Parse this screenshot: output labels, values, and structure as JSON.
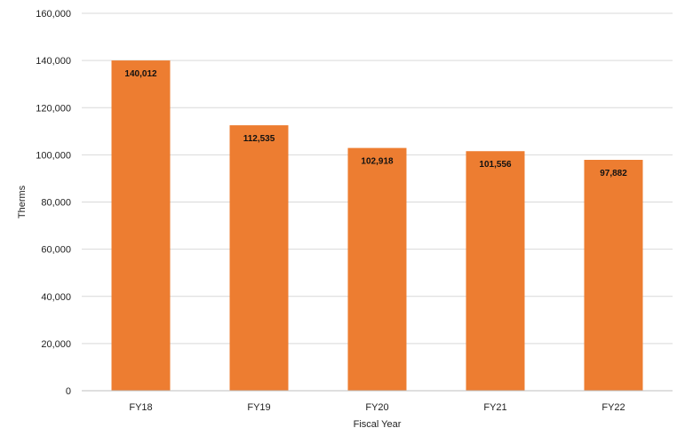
{
  "chart_data": {
    "type": "bar",
    "title": "",
    "xlabel": "Fiscal Year",
    "ylabel": "Therms",
    "categories": [
      "FY18",
      "FY19",
      "FY20",
      "FY21",
      "FY22"
    ],
    "values": [
      140012,
      112535,
      102918,
      101556,
      97882
    ],
    "data_labels": [
      "140,012",
      "112,535",
      "102,918",
      "101,556",
      "97,882"
    ],
    "ylim": [
      0,
      160000
    ],
    "y_ticks": [
      0,
      20000,
      40000,
      60000,
      80000,
      100000,
      120000,
      140000,
      160000
    ],
    "y_tick_labels": [
      "0",
      "20,000",
      "40,000",
      "60,000",
      "80,000",
      "100,000",
      "120,000",
      "140,000",
      "160,000"
    ],
    "grid": true,
    "legend": "none",
    "colors": {
      "bar": "#ED7D31",
      "grid": "#D9D9D9",
      "axis": "#BFBFBF",
      "text": "#222222",
      "label": "#111111"
    }
  }
}
